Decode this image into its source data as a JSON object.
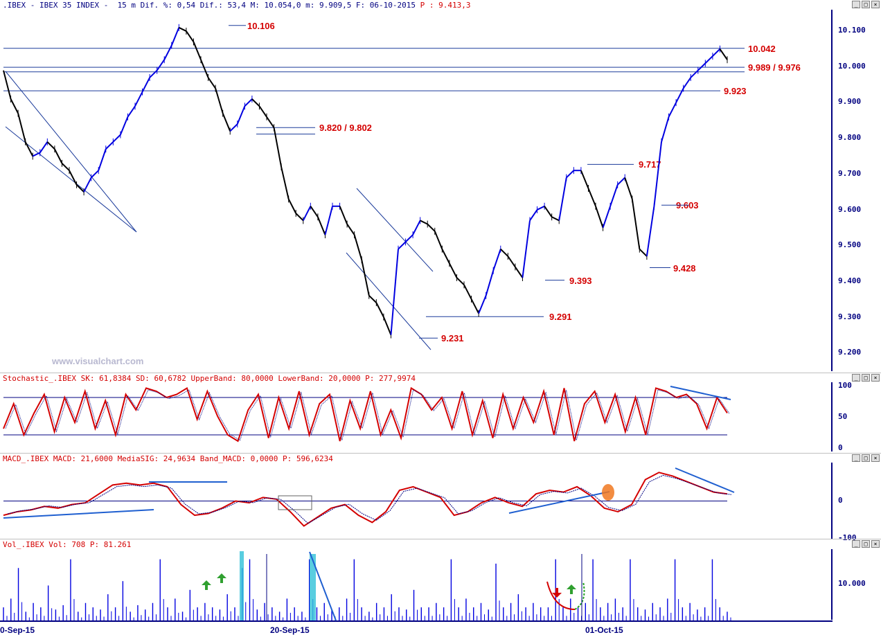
{
  "price_panel": {
    "title_main": ".IBEX - IBEX 35 INDEX -  15 m Dif. %: 0,54 Dif.: 53,4 M: 10.054,0 m: 9.909,5 F: 06-10-2015 ",
    "title_last": "P : 9.413,3",
    "yticks": [
      "10.100",
      "10.000",
      "9.900",
      "9.800",
      "9.700",
      "9.600",
      "9.500",
      "9.400",
      "9.300",
      "9.200"
    ]
  },
  "watermark": "www.visualchart.com",
  "stoch_panel": {
    "title": "Stochastic_.IBEX SK: 61,8384 SD: 60,6782 UpperBand: 80,0000 LowerBand: 20,0000 P: 277,9974",
    "yticks": [
      "100",
      "50",
      "0"
    ]
  },
  "macd_panel": {
    "title": "MACD_.IBEX MACD: 21,6000 MediaSIG: 24,9634 Band_MACD: 0,0000 P: 596,6234",
    "yticks": [
      "0",
      "-100"
    ]
  },
  "vol_panel": {
    "title": "Vol_.IBEX Vol: 708 P: 81.261",
    "yticks": [
      "10.000"
    ]
  },
  "x_labels": [
    "0-Sep-15",
    "20-Sep-15",
    "01-Oct-15"
  ],
  "window_buttons": [
    "_",
    "□",
    "×"
  ],
  "colors": {
    "up": "#0000e0",
    "down": "#000000",
    "red": "#d40000",
    "navy": "#000080",
    "line": "#1a3a9a"
  },
  "chart_data": [
    {
      "type": "line",
      "title": "",
      "ylim": [
        9150,
        10150
      ],
      "levels": [
        {
          "label": "10.106",
          "value": 10106
        },
        {
          "label": "10.042",
          "value": 10042
        },
        {
          "label": "9.989 / 9.976",
          "value": 9989
        },
        {
          "label": "9.923",
          "value": 9923
        },
        {
          "label": "9.820 / 9.802",
          "value": 9820
        },
        {
          "label": "9.717",
          "value": 9717
        },
        {
          "label": "9.603",
          "value": 9603
        },
        {
          "label": "9.428",
          "value": 9428
        },
        {
          "label": "9.393",
          "value": 9393
        },
        {
          "label": "9.291",
          "value": 9291
        },
        {
          "label": "9.231",
          "value": 9231
        }
      ],
      "series": [
        {
          "values": [
            9980,
            9900,
            9860,
            9780,
            9740,
            9750,
            9780,
            9760,
            9720,
            9700,
            9660,
            9640,
            9680,
            9700,
            9760,
            9780,
            9800,
            9850,
            9880,
            9920,
            9960,
            9980,
            10010,
            10050,
            10100,
            10090,
            10060,
            10010,
            9960,
            9930,
            9860,
            9810,
            9830,
            9880,
            9900,
            9880,
            9850,
            9820,
            9710,
            9620,
            9580,
            9560,
            9600,
            9570,
            9520,
            9600,
            9600,
            9550,
            9520,
            9450,
            9350,
            9330,
            9290,
            9240,
            9480,
            9500,
            9520,
            9560,
            9550,
            9530,
            9480,
            9440,
            9400,
            9380,
            9340,
            9300,
            9350,
            9420,
            9480,
            9460,
            9430,
            9400,
            9560,
            9590,
            9600,
            9570,
            9560,
            9680,
            9700,
            9700,
            9650,
            9600,
            9540,
            9600,
            9660,
            9680,
            9620,
            9480,
            9460,
            9600,
            9780,
            9850,
            9890,
            9930,
            9960,
            9980,
            10000,
            10020,
            10040,
            10010
          ]
        }
      ]
    },
    {
      "type": "line",
      "title": "",
      "ylim": [
        0,
        100
      ],
      "series": [
        {
          "values": [
            30,
            70,
            20,
            55,
            85,
            25,
            80,
            40,
            90,
            30,
            75,
            20,
            85,
            60,
            95,
            90,
            80,
            85,
            95,
            45,
            90,
            50,
            20,
            10,
            60,
            85,
            15,
            80,
            30,
            90,
            20,
            70,
            85,
            10,
            75,
            30,
            90,
            20,
            60,
            15,
            95,
            85,
            60,
            80,
            30,
            90,
            20,
            75,
            15,
            85,
            30,
            80,
            40,
            90,
            20,
            95,
            10,
            70,
            90,
            40,
            85,
            25,
            80,
            20,
            95,
            90,
            80,
            85,
            70,
            30,
            80,
            55
          ]
        }
      ]
    },
    {
      "type": "line",
      "title": "",
      "ylim": [
        -100,
        100
      ],
      "series": [
        {
          "values": [
            -40,
            -30,
            -25,
            -15,
            -20,
            -10,
            -5,
            20,
            45,
            50,
            45,
            50,
            40,
            -10,
            -40,
            -35,
            -20,
            0,
            -5,
            10,
            5,
            -30,
            -70,
            -45,
            -20,
            -10,
            -40,
            -60,
            -30,
            30,
            40,
            25,
            10,
            -40,
            -30,
            -5,
            10,
            -5,
            -15,
            20,
            30,
            25,
            40,
            15,
            -20,
            -30,
            -10,
            60,
            80,
            70,
            55,
            40,
            25,
            20
          ]
        }
      ]
    },
    {
      "type": "bar",
      "title": "",
      "ylim": [
        0,
        16000
      ],
      "series": [
        {
          "values": [
            3000,
            5000,
            12000,
            2000,
            4000,
            3000,
            8000,
            2500,
            3500,
            14000,
            2000,
            4000,
            3000,
            2500,
            6000,
            3000,
            9000,
            2000,
            3500,
            2500,
            4000,
            14000,
            3000,
            5000,
            2000,
            7000,
            3000,
            4000,
            3000,
            2500,
            6000,
            3000,
            12000,
            14000,
            2500,
            4000,
            3000,
            2000,
            5000,
            3000,
            2000,
            14000,
            3000,
            4000,
            2500,
            3000,
            5000,
            14000,
            3000,
            2000,
            4000,
            3000,
            6000,
            3000,
            2500,
            7000,
            3000,
            3000,
            4000,
            3000,
            14000,
            3000,
            5000,
            3000,
            4000,
            2500,
            13000,
            3000,
            4000,
            6000,
            3000,
            4000,
            3000,
            3000,
            14000,
            3000,
            5000,
            3000,
            4000,
            14000,
            3000,
            4000,
            5000,
            3000,
            14000,
            3000,
            2500,
            4000,
            3000,
            5000,
            14000,
            3000,
            4000,
            2500,
            3000,
            14000,
            3000,
            2000
          ]
        }
      ]
    }
  ]
}
